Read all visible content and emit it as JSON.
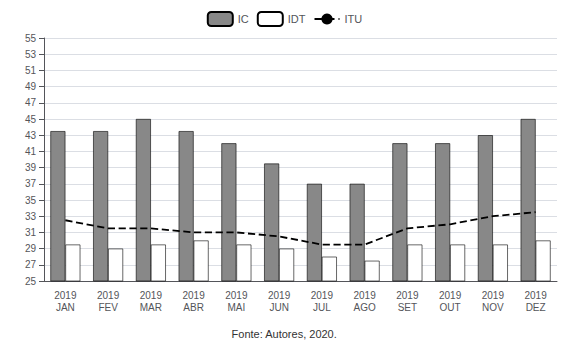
{
  "chart_data": {
    "type": "bar",
    "categories": [
      "2019\nJAN",
      "2019\nFEV",
      "2019\nMAR",
      "2019\nABR",
      "2019\nMAI",
      "2019\nJUN",
      "2019\nJUL",
      "2019\nAGO",
      "2019\nSET",
      "2019\nOUT",
      "2019\nNOV",
      "2019\nDEZ"
    ],
    "series": [
      {
        "name": "IC",
        "type": "bar",
        "color": "#888888",
        "values": [
          43.5,
          43.5,
          45.0,
          43.5,
          42.0,
          39.5,
          37.0,
          37.0,
          42.0,
          42.0,
          43.0,
          45.0
        ]
      },
      {
        "name": "IDT",
        "type": "bar",
        "color": "#ffffff",
        "values": [
          29.5,
          29.0,
          29.5,
          30.0,
          29.5,
          29.0,
          28.0,
          27.5,
          29.5,
          29.5,
          29.5,
          30.0
        ]
      },
      {
        "name": "ITU",
        "type": "line",
        "color": "#000000",
        "line_style": "dashed",
        "marker": "none",
        "values": [
          32.5,
          31.5,
          31.5,
          31.0,
          31.0,
          30.5,
          29.5,
          29.5,
          31.5,
          32.0,
          33.0,
          33.5
        ]
      }
    ],
    "ylim": [
      25,
      55
    ],
    "yticks": [
      25,
      27,
      29,
      31,
      33,
      35,
      37,
      39,
      41,
      43,
      45,
      47,
      49,
      51,
      53,
      55
    ],
    "grid": true,
    "legend": "top",
    "annotations": [
      "Fonte: Autores, 2020."
    ]
  }
}
